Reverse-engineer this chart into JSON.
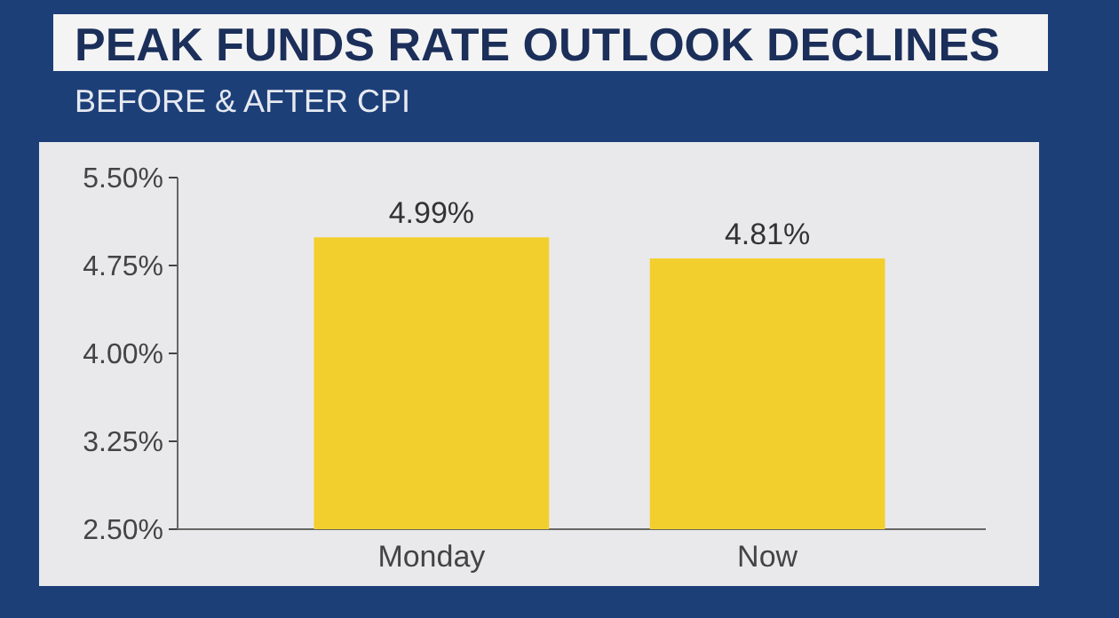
{
  "chart_data": {
    "type": "bar",
    "title": "PEAK FUNDS RATE OUTLOOK DECLINES",
    "subtitle": "BEFORE & AFTER CPI",
    "categories": [
      "Monday",
      "Now"
    ],
    "values": [
      4.99,
      4.81
    ],
    "value_labels": [
      "4.99%",
      "4.81%"
    ],
    "color": "#f2cf2c",
    "ylim": [
      2.5,
      5.5
    ],
    "yticks": [
      {
        "value": 2.5,
        "label": "2.50%"
      },
      {
        "value": 3.25,
        "label": "3.25%"
      },
      {
        "value": 4,
        "label": "4.00%"
      },
      {
        "value": 4.75,
        "label": "4.75%"
      },
      {
        "value": 5.5,
        "label": "5.50%"
      }
    ],
    "grid": false
  }
}
